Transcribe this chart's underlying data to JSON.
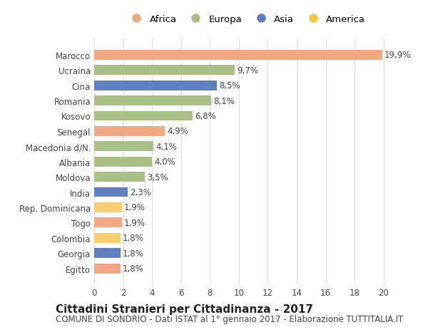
{
  "categories": [
    "Marocco",
    "Ucraina",
    "Cina",
    "Romania",
    "Kosovo",
    "Senegal",
    "Macedonia d/N.",
    "Albania",
    "Moldova",
    "India",
    "Rep. Dominicana",
    "Togo",
    "Colombia",
    "Georgia",
    "Egitto"
  ],
  "values": [
    19.9,
    9.7,
    8.5,
    8.1,
    6.8,
    4.9,
    4.1,
    4.0,
    3.5,
    2.3,
    1.9,
    1.9,
    1.8,
    1.8,
    1.8
  ],
  "labels": [
    "19,9%",
    "9,7%",
    "8,5%",
    "8,1%",
    "6,8%",
    "4,9%",
    "4,1%",
    "4,0%",
    "3,5%",
    "2,3%",
    "1,9%",
    "1,9%",
    "1,8%",
    "1,8%",
    "1,8%"
  ],
  "continents": [
    "Africa",
    "Europa",
    "Asia",
    "Europa",
    "Europa",
    "Africa",
    "Europa",
    "Europa",
    "Europa",
    "Asia",
    "America",
    "Africa",
    "America",
    "Asia",
    "Africa"
  ],
  "colors": {
    "Africa": "#F0A882",
    "Europa": "#AABF85",
    "Asia": "#6080C0",
    "America": "#F5CF70"
  },
  "legend_colors": {
    "Africa": "#F0A882",
    "Europa": "#AABF85",
    "Asia": "#5B7FC4",
    "America": "#F5C842"
  },
  "legend_order": [
    "Africa",
    "Europa",
    "Asia",
    "America"
  ],
  "title1": "Cittadini Stranieri per Cittadinanza - 2017",
  "title2": "COMUNE DI SONDRIO - Dati ISTAT al 1° gennaio 2017 - Elaborazione TUTTITALIA.IT",
  "xlim": [
    0,
    21
  ],
  "xticks": [
    0,
    2,
    4,
    6,
    8,
    10,
    12,
    14,
    16,
    18,
    20
  ],
  "background_color": "#FFFFFF",
  "grid_color": "#DDDDDD",
  "bar_height": 0.65,
  "label_fontsize": 8.5,
  "tick_fontsize": 8.5,
  "title1_fontsize": 11,
  "title2_fontsize": 8.5
}
